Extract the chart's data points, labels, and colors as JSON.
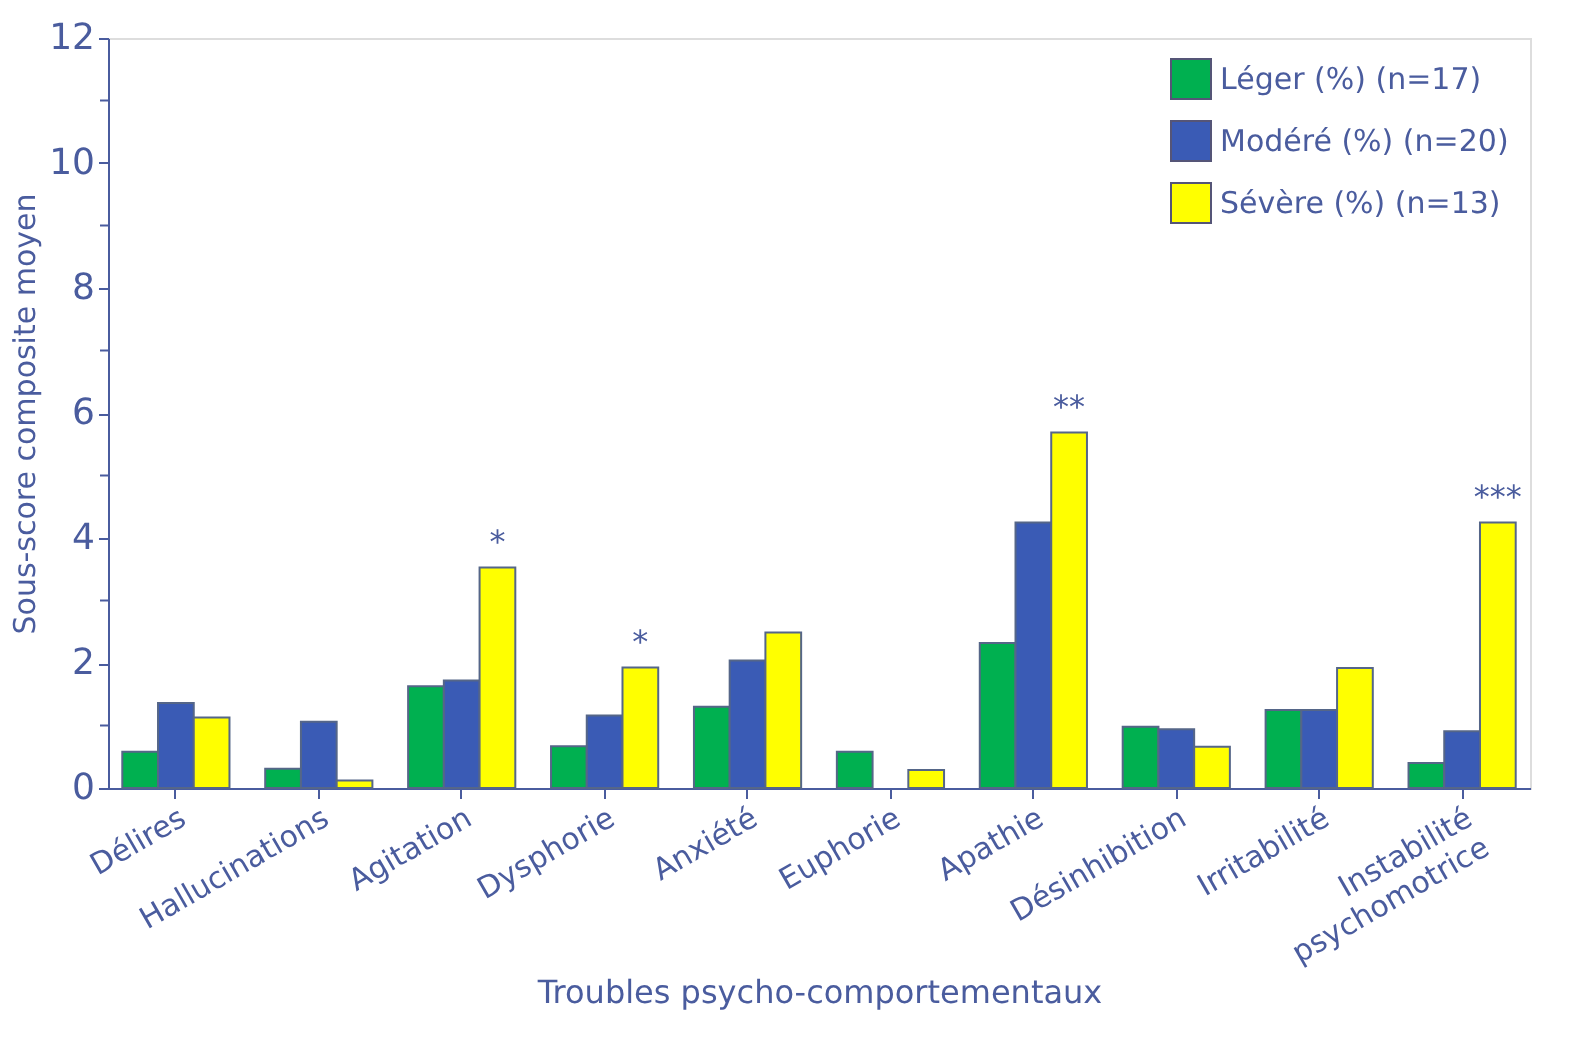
{
  "chart_data": {
    "type": "bar",
    "categories": [
      "Délires",
      "Hallucinations",
      "Agitation",
      "Dysphorie",
      "Anxiété",
      "Euphorie",
      "Apathie",
      "Désinhibition",
      "Irritabilité",
      "Instabilité\npsychomotrice"
    ],
    "series": [
      {
        "name": "Léger (%) (n=17)",
        "color": "#00b050",
        "values": [
          0.58,
          0.31,
          1.63,
          0.67,
          1.3,
          0.58,
          2.32,
          0.98,
          1.25,
          0.4
        ]
      },
      {
        "name": "Modéré (%) (n=20)",
        "color": "#3a5bb5",
        "values": [
          1.36,
          1.06,
          1.72,
          1.16,
          2.04,
          null,
          4.25,
          0.94,
          1.25,
          0.91
        ]
      },
      {
        "name": "Sévère (%) (n=13)",
        "color": "#ffff00",
        "values": [
          1.13,
          0.12,
          3.53,
          1.93,
          2.49,
          0.29,
          5.69,
          0.66,
          1.92,
          4.25
        ]
      }
    ],
    "xlabel": "Troubles psycho-comportementaux",
    "ylabel": "Sous-score composite moyen",
    "ylim": [
      0,
      12
    ],
    "yticks": [
      0,
      {
        "value": 1,
        "label": null
      },
      2,
      {
        "value": 3,
        "label": null
      },
      4,
      {
        "value": 5,
        "label": null
      },
      6,
      {
        "value": 7,
        "label": null
      },
      8,
      {
        "value": 9,
        "label": null
      },
      10,
      {
        "value": 11,
        "label": null
      },
      12
    ],
    "annotations": [
      "*",
      "*",
      "**",
      "***"
    ],
    "grid": false,
    "legend": "top right"
  }
}
